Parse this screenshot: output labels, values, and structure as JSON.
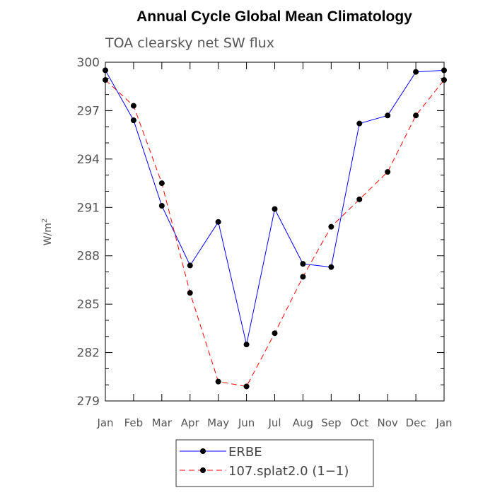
{
  "chart_data": {
    "type": "line",
    "title": "Annual Cycle Global Mean Climatology",
    "subtitle": "TOA clearsky net SW flux",
    "ylabel_main": "W/m",
    "ylabel_sup": "2",
    "ylim": [
      279,
      300
    ],
    "yticks": [
      "279",
      "282",
      "285",
      "288",
      "291",
      "294",
      "297",
      "300"
    ],
    "categories": [
      "Jan",
      "Feb",
      "Mar",
      "Apr",
      "May",
      "Jun",
      "Jul",
      "Aug",
      "Sep",
      "Oct",
      "Nov",
      "Dec",
      "Jan"
    ],
    "legend_position": "bottom-center",
    "series": [
      {
        "name": "ERBE",
        "color": "#0000ff",
        "dash": "solid",
        "values": [
          299.5,
          296.4,
          291.1,
          287.4,
          290.1,
          282.5,
          290.9,
          287.5,
          287.3,
          296.2,
          296.7,
          299.4,
          299.5
        ]
      },
      {
        "name": "107.splat2.0 (1−1)",
        "color": "#ff0000",
        "dash": "dashed",
        "values": [
          298.9,
          297.3,
          292.5,
          285.7,
          280.2,
          279.9,
          283.2,
          286.7,
          289.8,
          291.5,
          293.2,
          296.7,
          298.9
        ]
      }
    ]
  }
}
